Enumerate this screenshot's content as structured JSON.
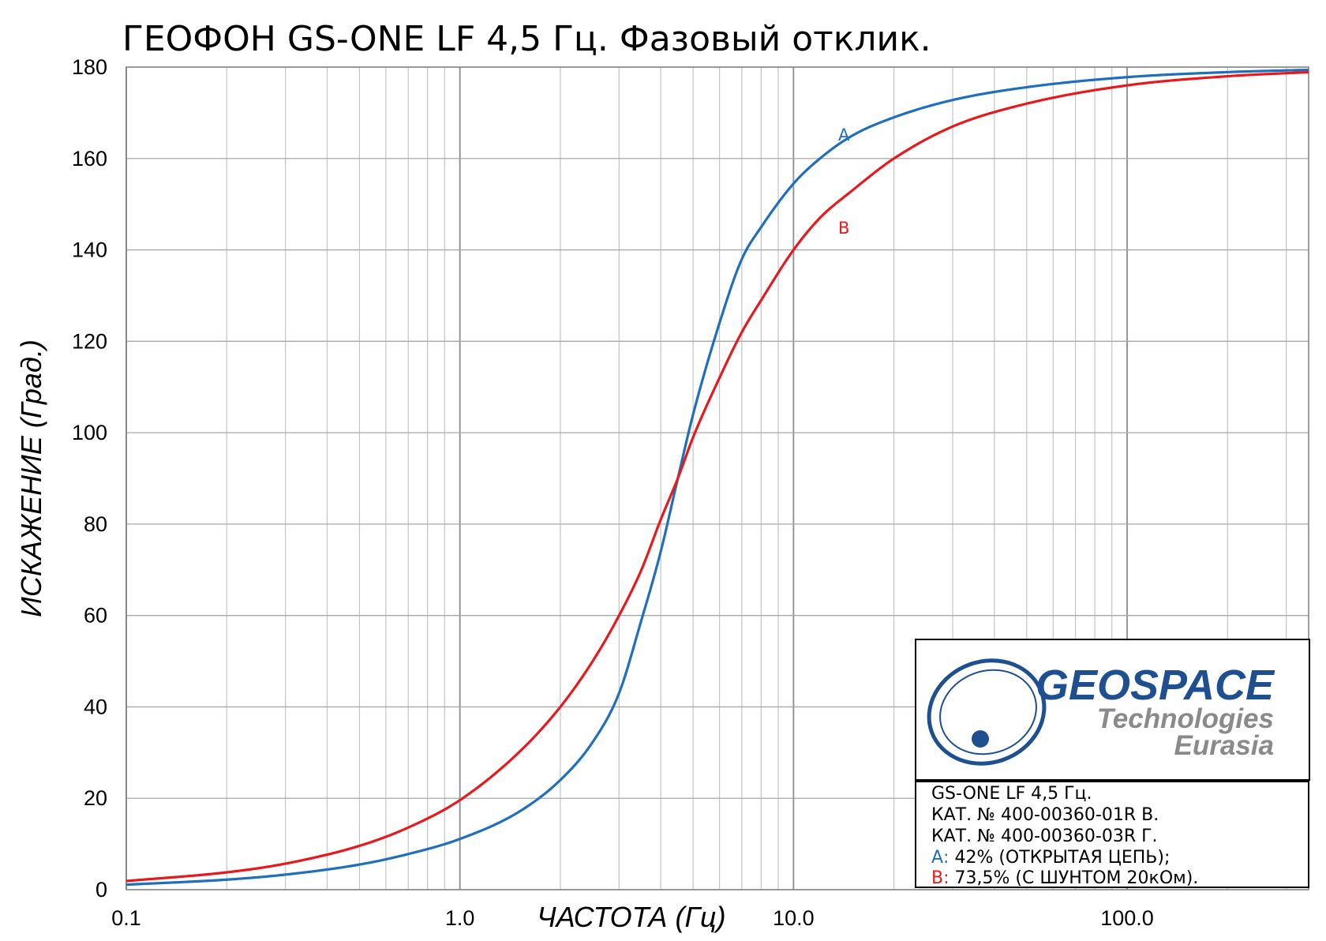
{
  "chart_data": {
    "type": "line",
    "title": "ГЕОФОН GS-ONE LF 4,5 Гц. Фазовый отклик.",
    "xlabel": "ЧАСТОТА (Гц)",
    "ylabel": "ИСКАЖЕНИЕ (Град.)",
    "xscale": "log",
    "xlim": [
      0.1,
      350
    ],
    "ylim": [
      0,
      180
    ],
    "x_ticks": [
      0.1,
      1,
      10,
      100
    ],
    "x_tick_labels": [
      "0.1",
      "1.0",
      "10.0",
      "100.0"
    ],
    "y_ticks": [
      0,
      20,
      40,
      60,
      80,
      100,
      120,
      140,
      160,
      180
    ],
    "y_tick_labels": [
      "0",
      "20",
      "40",
      "60",
      "80",
      "100",
      "120",
      "140",
      "160",
      "180"
    ],
    "grid": true,
    "series": [
      {
        "name": "A",
        "color": "#1f6fbd",
        "x": [
          0.1,
          0.2,
          0.3,
          0.5,
          0.7,
          1,
          1.5,
          2,
          2.5,
          3,
          3.5,
          4,
          4.5,
          5,
          6,
          7,
          8,
          10,
          12,
          15,
          20,
          30,
          50,
          100,
          200,
          350
        ],
        "y": [
          1.1,
          2.2,
          3.3,
          5.5,
          7.8,
          11.1,
          17.0,
          24.0,
          32.3,
          43.0,
          59.0,
          74.0,
          90.0,
          104.0,
          124.0,
          138.0,
          145.0,
          154.5,
          160.0,
          165.0,
          169.0,
          172.8,
          175.6,
          177.8,
          178.9,
          179.4
        ]
      },
      {
        "name": "B",
        "color": "#e8191c",
        "x": [
          0.1,
          0.2,
          0.3,
          0.5,
          0.7,
          1,
          1.5,
          2,
          2.5,
          3,
          3.5,
          4,
          4.5,
          5,
          6,
          7,
          8,
          10,
          12,
          15,
          20,
          30,
          50,
          100,
          200,
          350
        ],
        "y": [
          1.9,
          3.8,
          5.7,
          9.6,
          13.6,
          19.6,
          30.0,
          40.0,
          50.0,
          60.0,
          70.0,
          81.0,
          90.0,
          99.0,
          112.0,
          122.0,
          129.0,
          140.0,
          147.0,
          153.0,
          160.0,
          167.0,
          172.0,
          176.0,
          178.0,
          178.9
        ]
      }
    ]
  },
  "logo": {
    "line1": "GEOSPACE",
    "line2": "Technologies",
    "line3": "Eurasia"
  },
  "legend": {
    "line1": "GS-ONE LF 4,5 Гц.",
    "line2": "КАТ.  №  400-00360-01R В.",
    "line3": "КАТ.  №  400-00360-03R Г.",
    "a_key": "А:",
    "a_text": " 42% (ОТКРЫТАЯ ЦЕПЬ);",
    "b_key": "В:",
    "b_text": " 73,5% (С ШУНТОМ 20кОм).",
    "a_color": "#1f6fbd",
    "b_color": "#e8191c"
  },
  "annotations": {
    "a_label": "А",
    "b_label": "В"
  }
}
